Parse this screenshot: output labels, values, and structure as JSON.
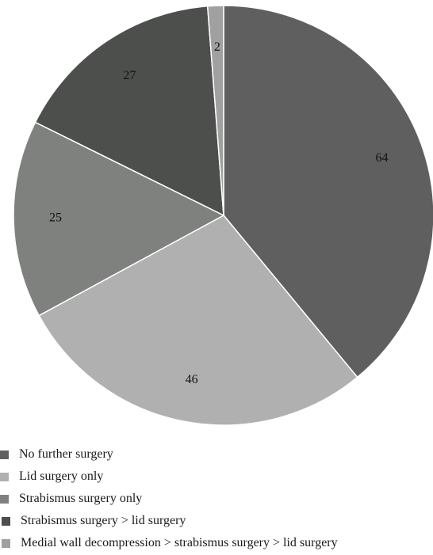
{
  "chart_data": {
    "type": "pie",
    "title": "",
    "start_angle_deg": 0,
    "direction": "clockwise",
    "categories": [
      "No further surgery",
      "Lid surgery only",
      "Strabismus surgery only",
      "Strabismus surgery > lid surgery",
      "Medial wall decompression > strabismus surgery > lid surgery"
    ],
    "values": [
      64,
      46,
      25,
      27,
      2
    ],
    "data_labels": [
      "64",
      "46",
      "25",
      "27",
      "2"
    ],
    "colors": [
      "#5f5f5f",
      "#b0b0b0",
      "#7f817f",
      "#4d4f4d",
      "#a0a0a0"
    ],
    "legend_position": "bottom-left"
  }
}
